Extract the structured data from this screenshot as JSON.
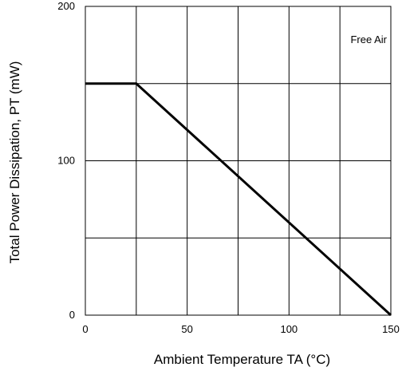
{
  "chart_data": {
    "type": "line",
    "xlabel": "Ambient Temperature TA (°C)",
    "ylabel": "Total Power Dissipation, PT (mW)",
    "xlim": [
      0,
      150
    ],
    "ylim": [
      0,
      200
    ],
    "x_ticks": [
      "0",
      "50",
      "100",
      "150"
    ],
    "y_ticks": [
      "0",
      "100",
      "200"
    ],
    "grid": true,
    "grid_x": [
      0,
      25,
      50,
      75,
      100,
      125,
      150
    ],
    "grid_y": [
      0,
      50,
      100,
      150,
      200
    ],
    "annotation": "Free Air",
    "series": [
      {
        "x": [
          0,
          25,
          150
        ],
        "y": [
          150,
          150,
          0
        ]
      }
    ],
    "colors": {
      "line": "#000000",
      "grid": "#000000"
    }
  }
}
